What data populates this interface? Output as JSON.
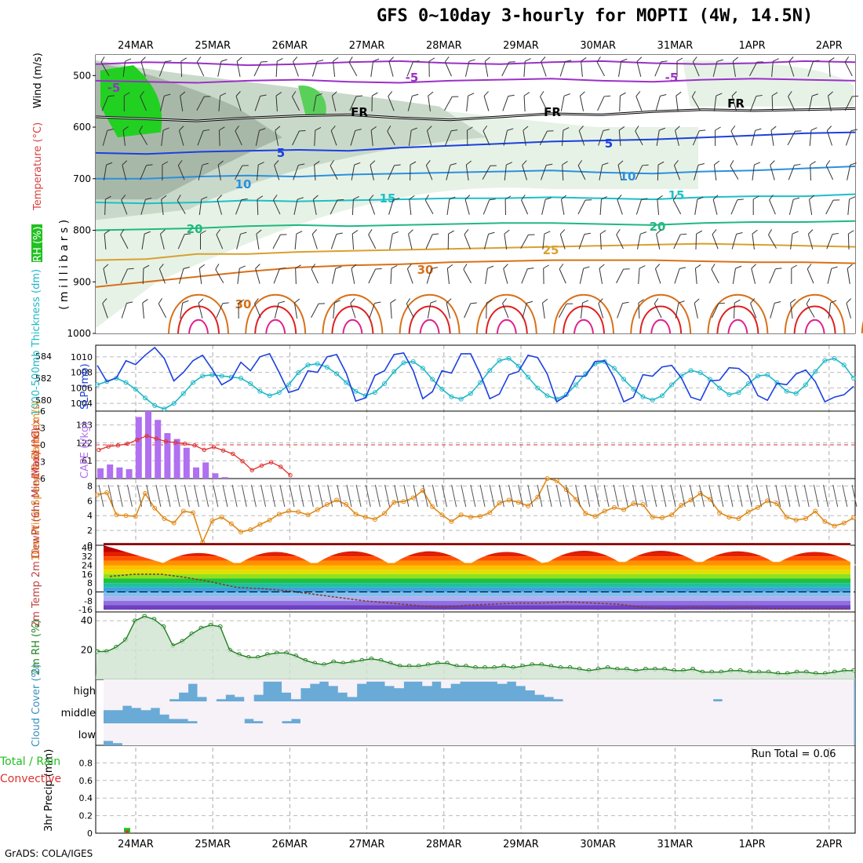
{
  "header": {
    "title": "GFS 0~10day 3-hourly for MOPTI (4W, 14.5N)",
    "credit": "GrADS: COLA/IGES"
  },
  "colors": {
    "purple": "#9b30c8",
    "black_fr": "#000000",
    "blue": "#1c40e0",
    "mid_blue": "#2b90e0",
    "cyan": "#1cc0c8",
    "green_teal": "#20b880",
    "orange_light": "#d8a030",
    "orange": "#d87018",
    "red": "#e02020",
    "magenta": "#e0208c",
    "rh_band_light": "#e6f2e6",
    "rh_band_mid": "#c9d9c9",
    "rh_band_dark": "#a8b8a8",
    "rh_high_green": "#22d022",
    "slp": "#1c40e0",
    "thickness": "#20b8c8",
    "cape": "#b070f0",
    "lifted": "#e03030",
    "wind10": "#e08a18",
    "rh2m": "#208020",
    "rh2m_fill": "#cfe3cf",
    "cloud": "#6aaad6",
    "cloud_clear": "#f6f2f8",
    "precip_rain": "#20c020",
    "precip_conv": "#e03030"
  },
  "chart_data": [
    {
      "id": "upper_air",
      "type": "heatmap",
      "x_dates": [
        "24MAR",
        "25MAR",
        "26MAR",
        "27MAR",
        "28MAR",
        "29MAR",
        "30MAR",
        "31MAR",
        "1APR",
        "2APR"
      ],
      "ylabel_parts": [
        "RH (%)",
        "Temperature (°C)",
        "Wind (m/s)"
      ],
      "yunit": "( m i l l i b a r s )",
      "y_ticks": [
        500,
        600,
        700,
        800,
        900,
        1000
      ],
      "ylim": [
        460,
        1000
      ],
      "rh_legend": "RH (%)",
      "temp_contours": [
        {
          "label": "-5",
          "pressure": [
            478,
            474,
            476,
            480,
            478,
            474,
            472,
            476,
            478,
            474,
            472,
            476,
            478,
            476,
            472,
            474
          ]
        },
        {
          "label": "-5",
          "pressure": [
            510,
            512,
            514,
            510,
            508,
            512,
            514,
            510,
            508,
            506,
            510,
            512,
            508,
            506,
            508,
            510
          ]
        },
        {
          "label": "FR",
          "pressure": [
            580,
            584,
            588,
            582,
            578,
            576,
            582,
            586,
            580,
            574,
            576,
            570,
            566,
            568,
            566,
            564
          ]
        },
        {
          "label": "-5",
          "pressure": [
            650,
            652,
            648,
            646,
            644,
            646,
            640,
            636,
            632,
            628,
            626,
            624,
            620,
            616,
            612,
            610
          ]
        },
        {
          "label": "10",
          "pressure": [
            700,
            700,
            696,
            694,
            696,
            692,
            690,
            688,
            686,
            684,
            688,
            690,
            686,
            684,
            680,
            676
          ]
        },
        {
          "label": "15",
          "pressure": [
            746,
            748,
            746,
            742,
            744,
            742,
            740,
            738,
            738,
            736,
            738,
            740,
            736,
            734,
            734,
            730
          ]
        },
        {
          "label": "20",
          "pressure": [
            800,
            798,
            796,
            792,
            790,
            792,
            790,
            788,
            786,
            786,
            788,
            790,
            786,
            784,
            784,
            782
          ]
        },
        {
          "label": "25",
          "pressure": [
            858,
            856,
            846,
            846,
            842,
            840,
            838,
            836,
            834,
            832,
            830,
            828,
            826,
            828,
            830,
            832
          ]
        },
        {
          "label": "30",
          "pressure": [
            910,
            900,
            890,
            880,
            872,
            868,
            866,
            862,
            860,
            858,
            858,
            858,
            860,
            862,
            862,
            864
          ]
        }
      ],
      "contour_labels": {
        "minus5_a": "-5",
        "minus5_b": "-5",
        "minus5_c": "-5",
        "fr_a": "FR",
        "fr_b": "FR",
        "fr_c": "FR",
        "five": "5",
        "ten_a": "10",
        "ten_b": "10",
        "fifteen_a": "15",
        "fifteen_b": "15",
        "twenty_a": "20",
        "twenty_b": "20",
        "twentyfive": "25",
        "thirty_a": "30",
        "thirty_b": "30"
      }
    },
    {
      "id": "slp_thickness",
      "type": "line",
      "ylabel_left": "1000-500mb Thickness (dm)",
      "ylabel_right": "SLP (mb)",
      "thickness_ticks": [
        580,
        582,
        584
      ],
      "thickness_lim": [
        579,
        585
      ],
      "slp_ticks": [
        1004,
        1006,
        1008,
        1010
      ],
      "slp_lim": [
        1003,
        1011.5
      ],
      "series": [
        {
          "key": "slp",
          "values": [
            1008.9,
            1006.8,
            1007.3,
            1009.5,
            1009.0,
            1010.2,
            1011.2,
            1009.8,
            1006.9,
            1008.0,
            1009.5,
            1010.2,
            1008.4,
            1006.4,
            1007.1,
            1009.3,
            1008.2,
            1010.0,
            1010.4,
            1008.0,
            1005.4,
            1005.8,
            1008.2,
            1008.0,
            1010.0,
            1010.3,
            1007.9,
            1004.3,
            1004.7,
            1007.6,
            1008.2,
            1010.3,
            1010.5,
            1008.2,
            1004.6,
            1005.5,
            1008.2,
            1007.9,
            1010.4,
            1010.4,
            1007.8,
            1004.6,
            1005.2,
            1007.7,
            1008.1,
            1010.2,
            1009.9,
            1007.8,
            1004.2,
            1005.0,
            1007.5,
            1007.5,
            1009.4,
            1009.5,
            1007.3,
            1004.2,
            1004.8,
            1007.7,
            1007.5,
            1008.7,
            1008.9,
            1007.3,
            1004.8,
            1004.4,
            1006.9,
            1007.0,
            1008.6,
            1008.5,
            1007.5,
            1005.0,
            1004.4,
            1006.6,
            1006.4,
            1007.8,
            1008.3,
            1006.8,
            1004.2,
            1004.8,
            1005.1,
            1006.2
          ]
        },
        {
          "key": "thickness",
          "values": [
            581.4,
            581.7,
            582.0,
            581.6,
            581.0,
            580.2,
            579.5,
            579.2,
            579.7,
            580.6,
            581.6,
            582.2,
            582.3,
            582.2,
            582.1,
            582.0,
            581.5,
            580.8,
            580.4,
            580.7,
            581.4,
            582.5,
            583.2,
            583.3,
            583.0,
            582.4,
            581.6,
            580.8,
            580.4,
            580.7,
            581.5,
            582.6,
            583.4,
            583.5,
            582.9,
            581.9,
            581.0,
            580.3,
            580.1,
            580.6,
            581.6,
            582.7,
            583.6,
            583.8,
            583.1,
            582.1,
            581.1,
            580.4,
            580.1,
            580.5,
            581.4,
            582.4,
            583.3,
            583.5,
            582.9,
            581.9,
            581.0,
            580.3,
            580.0,
            580.4,
            581.4,
            582.2,
            582.7,
            582.5,
            581.9,
            581.1,
            580.5,
            580.7,
            581.5,
            582.2,
            582.3,
            581.6,
            580.8,
            580.6,
            581.4,
            582.6,
            583.6,
            583.8,
            583.2,
            582.0
          ]
        }
      ]
    },
    {
      "id": "cape_li",
      "type": "bar",
      "ylabel_left": "Lifted Index",
      "ylabel_right": "CAPE (J/kg)",
      "li_ticks": [
        "-6",
        "-3",
        "0",
        "3",
        "6"
      ],
      "li_lim": [
        -6,
        6
      ],
      "cape_ticks": [
        61,
        122,
        183
      ],
      "cape_lim": [
        0,
        230
      ],
      "series": [
        {
          "key": "cape",
          "values": [
            35,
            48,
            38,
            32,
            210,
            230,
            200,
            155,
            135,
            105,
            38,
            55,
            18,
            5
          ]
        },
        {
          "key": "lifted",
          "values": [
            0.9,
            0.3,
            0.1,
            -0.2,
            -0.9,
            -1.6,
            -1.1,
            -0.6,
            -0.4,
            -0.2,
            0.1,
            0.9,
            0.4,
            1.0,
            1.6,
            2.9,
            4.5,
            3.7,
            3.1,
            3.9,
            5.4
          ]
        }
      ]
    },
    {
      "id": "wind10",
      "type": "line",
      "ylabel": "10m Wind Speed & Barbs (m/s)",
      "y_ticks": [
        0,
        2,
        4,
        6,
        8
      ],
      "ylim": [
        0,
        9
      ],
      "series": [
        {
          "key": "speed",
          "values": [
            6.8,
            7.1,
            4.1,
            4.0,
            3.9,
            7.0,
            5.0,
            3.6,
            3.0,
            4.6,
            4.4,
            0.4,
            3.3,
            3.8,
            2.9,
            1.8,
            2.1,
            2.8,
            3.4,
            4.2,
            4.6,
            4.5,
            4.1,
            4.8,
            5.5,
            6.1,
            5.5,
            4.2,
            3.8,
            3.5,
            4.3,
            5.8,
            5.9,
            6.4,
            7.4,
            5.2,
            4.1,
            3.2,
            4.1,
            3.8,
            3.9,
            4.4,
            5.7,
            6.1,
            5.8,
            5.3,
            6.5,
            9.0,
            8.7,
            7.5,
            6.2,
            4.3,
            3.9,
            4.6,
            5.1,
            4.8,
            5.6,
            5.5,
            3.8,
            3.7,
            4.1,
            5.4,
            6.1,
            7.0,
            6.2,
            4.4,
            3.8,
            3.6,
            4.5,
            5.1,
            6.0,
            5.6,
            3.8,
            3.4,
            3.6,
            4.6,
            3.2,
            2.6,
            3.0,
            3.7
          ]
        }
      ]
    },
    {
      "id": "temp2m",
      "type": "line",
      "ylabel": "2m Temp 2m DewPt (6hr Min/Max) (°C)",
      "y_ticks": [
        -16,
        -8,
        0,
        8,
        16,
        24,
        32,
        40
      ],
      "ylim": [
        -18,
        42
      ],
      "series": [
        {
          "key": "temp_max",
          "values": [
            38,
            40,
            41,
            41,
            40,
            41,
            41,
            40,
            39,
            41
          ]
        },
        {
          "key": "temp_min",
          "values": [
            26,
            26,
            26,
            26,
            26,
            27,
            27,
            27,
            27,
            24
          ]
        },
        {
          "key": "dewpt",
          "values": [
            14,
            16,
            16,
            13,
            9,
            4,
            3,
            1,
            -2,
            -5,
            -8,
            -10,
            -12,
            -14,
            -12,
            -11,
            -10,
            -10,
            -9,
            -10,
            -11,
            -14,
            -15,
            -14,
            -15,
            -14,
            -15,
            -15,
            -15,
            -15
          ]
        }
      ]
    },
    {
      "id": "rh2m",
      "type": "area",
      "ylabel": "2m RH (%)",
      "y_ticks": [
        20,
        40
      ],
      "ylim": [
        0,
        46
      ],
      "series": [
        {
          "key": "rh",
          "values": [
            19,
            19,
            22,
            27,
            40,
            43,
            41,
            36,
            23,
            26,
            31,
            35,
            37,
            36,
            20,
            17,
            15,
            15,
            17,
            18,
            18,
            16,
            13,
            11,
            10,
            12,
            11,
            12,
            13,
            14,
            13,
            11,
            9,
            9,
            9,
            10,
            11,
            11,
            9,
            9,
            8,
            8,
            8,
            9,
            8,
            9,
            10,
            10,
            9,
            8,
            8,
            7,
            6,
            7,
            8,
            7,
            7,
            6,
            7,
            7,
            7,
            6,
            6,
            7,
            5,
            5,
            5,
            6,
            6,
            5,
            5,
            5,
            4,
            4,
            5,
            5,
            4,
            4,
            5,
            6,
            6
          ]
        }
      ]
    },
    {
      "id": "cloud",
      "type": "heatmap",
      "ylabel": "Cloud Cover (%)",
      "levels": [
        "high",
        "middle",
        "low"
      ],
      "series": [
        {
          "key": "high",
          "values": [
            0,
            0,
            0,
            0,
            0,
            0,
            0,
            10,
            40,
            80,
            20,
            0,
            10,
            30,
            20,
            0,
            30,
            90,
            90,
            40,
            10,
            60,
            80,
            90,
            70,
            40,
            20,
            80,
            90,
            90,
            70,
            60,
            90,
            90,
            70,
            90,
            60,
            80,
            90,
            90,
            90,
            90,
            80,
            90,
            70,
            50,
            30,
            20,
            10,
            0,
            0,
            0,
            0,
            0,
            0,
            0,
            0,
            0,
            0,
            0,
            0,
            0,
            0,
            0,
            0,
            10,
            0,
            0,
            0,
            0,
            0,
            0,
            0,
            0,
            0,
            0,
            0,
            0,
            0,
            0
          ]
        },
        {
          "key": "middle",
          "values": [
            60,
            60,
            80,
            70,
            60,
            70,
            40,
            20,
            20,
            10,
            0,
            0,
            0,
            0,
            0,
            20,
            10,
            0,
            0,
            10,
            20,
            0,
            0,
            0,
            0,
            0,
            0,
            0,
            0,
            0,
            0,
            0,
            0,
            0,
            0,
            0,
            0,
            0,
            0,
            0,
            0,
            0,
            0,
            0,
            0,
            0,
            0,
            0,
            0,
            0,
            0,
            0,
            0,
            0,
            0,
            0,
            0,
            0,
            0,
            0,
            0,
            0,
            0,
            0,
            0,
            0,
            0,
            0,
            0,
            0,
            0,
            0,
            0,
            0,
            0,
            0,
            0,
            0,
            0,
            0
          ]
        },
        {
          "key": "low",
          "values": [
            20,
            10,
            0,
            0,
            0,
            0,
            0,
            0,
            0,
            0,
            0,
            0,
            0,
            0,
            0,
            0,
            0,
            0,
            0,
            0,
            0,
            0,
            0,
            0,
            0,
            0,
            0,
            0,
            0,
            0,
            0,
            0,
            0,
            0,
            0,
            0,
            0,
            0,
            0,
            0,
            0,
            0,
            0,
            0,
            0,
            0,
            0,
            0,
            0,
            0,
            0,
            0,
            0,
            0,
            0,
            0,
            0,
            0,
            0,
            0,
            0,
            0,
            0,
            0,
            0,
            0,
            0,
            0,
            0,
            0,
            0,
            0,
            0,
            0,
            0,
            0,
            0,
            0,
            0,
            0
          ]
        }
      ]
    },
    {
      "id": "precip",
      "type": "bar",
      "ylabel": "3hr Precip (mm)",
      "legend_total_rain": "Total / Rain",
      "legend_convective": "Convective",
      "run_total": "Run Total = 0.06",
      "y_ticks": [
        "0",
        "0.2",
        "0.4",
        "0.6",
        "0.8"
      ],
      "ylim": [
        0,
        1.0
      ],
      "series": [
        {
          "key": "total",
          "values": [
            0.06
          ]
        },
        {
          "key": "convective",
          "values": [
            0.03
          ]
        }
      ]
    }
  ]
}
